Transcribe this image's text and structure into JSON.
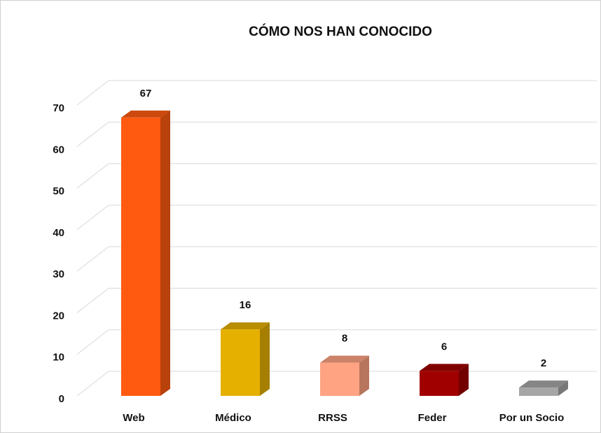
{
  "chart_data": {
    "type": "bar3d",
    "title": "CÓMO NOS HAN CONOCIDO",
    "categories": [
      "Web",
      "Médico",
      "RRSS",
      "Feder",
      "Por un Socio"
    ],
    "values": [
      67,
      16,
      8,
      6,
      2
    ],
    "colors": [
      "#ff5a10",
      "#e6b000",
      "#ffa382",
      "#a00000",
      "#a6a6a6"
    ],
    "ylim": [
      0,
      70
    ],
    "yticks": [
      0,
      10,
      20,
      30,
      40,
      50,
      60,
      70
    ],
    "grid": true
  }
}
